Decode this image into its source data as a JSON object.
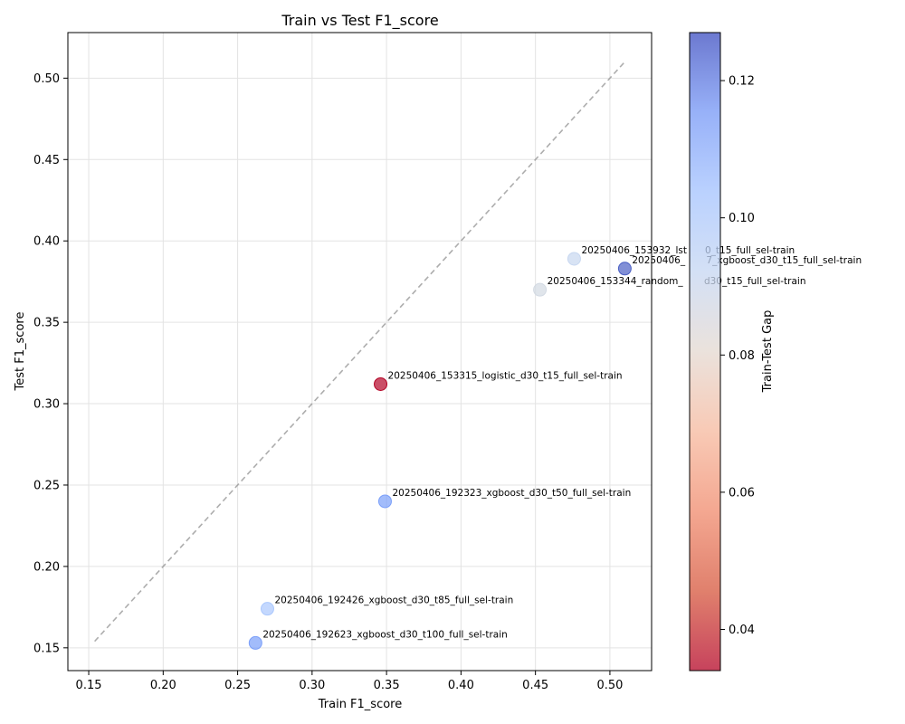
{
  "chart_data": {
    "type": "scatter",
    "title": "Train vs Test F1_score",
    "xlabel": "Train F1_score",
    "ylabel": "Test F1_score",
    "xlim": [
      0.136,
      0.528
    ],
    "ylim": [
      0.136,
      0.528
    ],
    "xticks": [
      "0.15",
      "0.20",
      "0.25",
      "0.30",
      "0.35",
      "0.40",
      "0.45",
      "0.50"
    ],
    "yticks": [
      "0.15",
      "0.20",
      "0.25",
      "0.30",
      "0.35",
      "0.40",
      "0.45",
      "0.50"
    ],
    "grid": true,
    "reference_line": {
      "from": [
        0.154,
        0.154
      ],
      "to": [
        0.51,
        0.51
      ],
      "color": "#999999",
      "style": "dashed"
    },
    "points": [
      {
        "label": "20250406_153932_lstm_d30_t15_full_sel-train",
        "label_visible": "20250406_153932_lst      0_t15_full_sel-train",
        "x": 0.476,
        "y": 0.389,
        "gap": 0.087,
        "color": "#c7d7f0"
      },
      {
        "label": "20250406_153817_xgboost_d30_t15_full_sel-train",
        "label_visible": "20250406_       7_xgboost_d30_t15_full_sel-train",
        "x": 0.51,
        "y": 0.383,
        "gap": 0.127,
        "color": "#4b60c4"
      },
      {
        "label": "20250406_153344_random_forest_d30_t15_full_sel-train",
        "label_visible": "20250406_153344_random_       d30_t15_full_sel-train",
        "x": 0.453,
        "y": 0.37,
        "gap": 0.083,
        "color": "#d3dae3"
      },
      {
        "label": "20250406_153315_logistic_d30_t15_full_sel-train",
        "label_visible": "20250406_153315_logistic_d30_t15_full_sel-train",
        "x": 0.346,
        "y": 0.312,
        "gap": 0.034,
        "color": "#b40426"
      },
      {
        "label": "20250406_192323_xgboost_d30_t50_full_sel-train",
        "label_visible": "20250406_192323_xgboost_d30_t50_full_sel-train",
        "x": 0.349,
        "y": 0.24,
        "gap": 0.109,
        "color": "#7b9ff9"
      },
      {
        "label": "20250406_192426_xgboost_d30_t85_full_sel-train",
        "label_visible": "20250406_192426_xgboost_d30_t85_full_sel-train",
        "x": 0.27,
        "y": 0.174,
        "gap": 0.096,
        "color": "#abc8fd"
      },
      {
        "label": "20250406_192623_xgboost_d30_t100_full_sel-train",
        "label_visible": "20250406_192623_xgboost_d30_t100_full_sel-train",
        "x": 0.262,
        "y": 0.153,
        "gap": 0.109,
        "color": "#7b9ff9"
      }
    ],
    "colorbar": {
      "label": "Train-Test Gap",
      "colormap": "coolwarm",
      "range": [
        0.034,
        0.127
      ],
      "ticks": [
        0.04,
        0.06,
        0.08,
        0.1,
        0.12
      ],
      "tick_labels": [
        "0.04",
        "0.06",
        "0.08",
        "0.10",
        "0.12"
      ]
    }
  }
}
